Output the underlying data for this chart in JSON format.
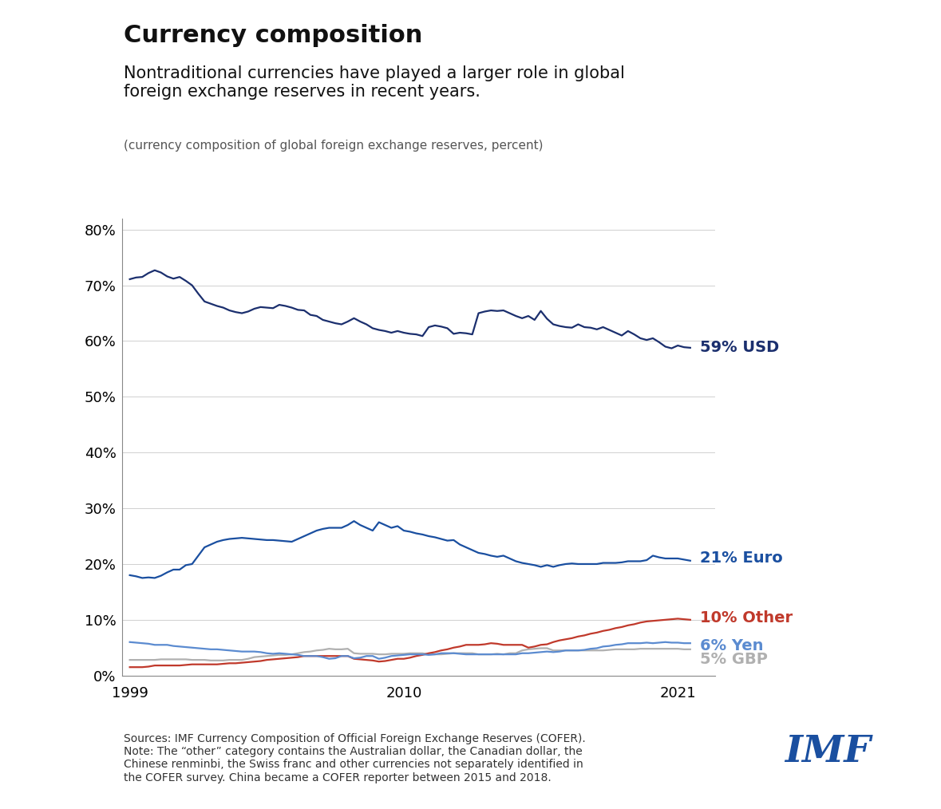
{
  "title": "Currency composition",
  "subtitle": "Nontraditional currencies have played a larger role in global\nforeign exchange reserves in recent years.",
  "caption": "(currency composition of global foreign exchange reserves, percent)",
  "source_text": "Sources: IMF Currency Composition of Official Foreign Exchange Reserves (COFER).\nNote: The “other” category contains the Australian dollar, the Canadian dollar, the\nChinese renminbi, the Swiss franc and other currencies not separately identified in\nthe COFER survey. China became a COFER reporter between 2015 and 2018.",
  "years": [
    1999,
    1999.25,
    1999.5,
    1999.75,
    2000,
    2000.25,
    2000.5,
    2000.75,
    2001,
    2001.25,
    2001.5,
    2001.75,
    2002,
    2002.25,
    2002.5,
    2002.75,
    2003,
    2003.25,
    2003.5,
    2003.75,
    2004,
    2004.25,
    2004.5,
    2004.75,
    2005,
    2005.25,
    2005.5,
    2005.75,
    2006,
    2006.25,
    2006.5,
    2006.75,
    2007,
    2007.25,
    2007.5,
    2007.75,
    2008,
    2008.25,
    2008.5,
    2008.75,
    2009,
    2009.25,
    2009.5,
    2009.75,
    2010,
    2010.25,
    2010.5,
    2010.75,
    2011,
    2011.25,
    2011.5,
    2011.75,
    2012,
    2012.25,
    2012.5,
    2012.75,
    2013,
    2013.25,
    2013.5,
    2013.75,
    2014,
    2014.25,
    2014.5,
    2014.75,
    2015,
    2015.25,
    2015.5,
    2015.75,
    2016,
    2016.25,
    2016.5,
    2016.75,
    2017,
    2017.25,
    2017.5,
    2017.75,
    2018,
    2018.25,
    2018.5,
    2018.75,
    2019,
    2019.25,
    2019.5,
    2019.75,
    2020,
    2020.25,
    2020.5,
    2020.75,
    2021,
    2021.25,
    2021.5
  ],
  "usd": [
    71.1,
    71.4,
    71.5,
    72.2,
    72.7,
    72.3,
    71.6,
    71.2,
    71.5,
    70.8,
    70.0,
    68.5,
    67.1,
    66.7,
    66.3,
    66.0,
    65.5,
    65.2,
    65.0,
    65.3,
    65.8,
    66.1,
    66.0,
    65.9,
    66.5,
    66.3,
    66.0,
    65.6,
    65.5,
    64.7,
    64.5,
    63.8,
    63.5,
    63.2,
    63.0,
    63.5,
    64.1,
    63.5,
    63.0,
    62.3,
    62.0,
    61.8,
    61.5,
    61.8,
    61.5,
    61.3,
    61.2,
    60.9,
    62.5,
    62.8,
    62.6,
    62.3,
    61.3,
    61.5,
    61.4,
    61.2,
    65.0,
    65.3,
    65.5,
    65.4,
    65.5,
    65.0,
    64.5,
    64.1,
    64.5,
    63.8,
    65.4,
    64.0,
    63.0,
    62.7,
    62.5,
    62.4,
    63.0,
    62.5,
    62.4,
    62.1,
    62.5,
    62.0,
    61.5,
    61.0,
    61.8,
    61.2,
    60.5,
    60.2,
    60.5,
    59.8,
    59.0,
    58.7,
    59.2,
    58.9,
    58.8
  ],
  "euro": [
    18.0,
    17.8,
    17.5,
    17.6,
    17.5,
    17.9,
    18.5,
    19.0,
    19.0,
    19.8,
    20.0,
    21.5,
    23.0,
    23.5,
    24.0,
    24.3,
    24.5,
    24.6,
    24.7,
    24.6,
    24.5,
    24.4,
    24.3,
    24.3,
    24.2,
    24.1,
    24.0,
    24.5,
    25.0,
    25.5,
    26.0,
    26.3,
    26.5,
    26.5,
    26.5,
    27.0,
    27.7,
    27.0,
    26.5,
    26.0,
    27.5,
    27.0,
    26.5,
    26.8,
    26.0,
    25.8,
    25.5,
    25.3,
    25.0,
    24.8,
    24.5,
    24.2,
    24.3,
    23.5,
    23.0,
    22.5,
    22.0,
    21.8,
    21.5,
    21.3,
    21.5,
    21.0,
    20.5,
    20.2,
    20.0,
    19.8,
    19.5,
    19.8,
    19.5,
    19.8,
    20.0,
    20.1,
    20.0,
    20.0,
    20.0,
    20.0,
    20.2,
    20.2,
    20.2,
    20.3,
    20.5,
    20.5,
    20.5,
    20.7,
    21.5,
    21.2,
    21.0,
    21.0,
    21.0,
    20.8,
    20.6
  ],
  "other": [
    1.5,
    1.5,
    1.5,
    1.6,
    1.8,
    1.8,
    1.8,
    1.8,
    1.8,
    1.9,
    2.0,
    2.0,
    2.0,
    2.0,
    2.0,
    2.1,
    2.2,
    2.2,
    2.3,
    2.4,
    2.5,
    2.6,
    2.8,
    2.9,
    3.0,
    3.1,
    3.2,
    3.3,
    3.5,
    3.5,
    3.5,
    3.5,
    3.5,
    3.5,
    3.5,
    3.5,
    3.0,
    2.9,
    2.8,
    2.7,
    2.5,
    2.6,
    2.8,
    3.0,
    3.0,
    3.2,
    3.5,
    3.7,
    4.0,
    4.2,
    4.5,
    4.7,
    5.0,
    5.2,
    5.5,
    5.5,
    5.5,
    5.6,
    5.8,
    5.7,
    5.5,
    5.5,
    5.5,
    5.5,
    5.0,
    5.2,
    5.5,
    5.6,
    6.0,
    6.3,
    6.5,
    6.7,
    7.0,
    7.2,
    7.5,
    7.7,
    8.0,
    8.2,
    8.5,
    8.7,
    9.0,
    9.2,
    9.5,
    9.7,
    9.8,
    9.9,
    10.0,
    10.1,
    10.2,
    10.1,
    10.0
  ],
  "yen": [
    6.0,
    5.9,
    5.8,
    5.7,
    5.5,
    5.5,
    5.5,
    5.3,
    5.2,
    5.1,
    5.0,
    4.9,
    4.8,
    4.7,
    4.7,
    4.6,
    4.5,
    4.4,
    4.3,
    4.3,
    4.3,
    4.2,
    4.0,
    3.9,
    4.0,
    3.9,
    3.8,
    3.7,
    3.5,
    3.5,
    3.5,
    3.3,
    3.0,
    3.1,
    3.5,
    3.5,
    3.1,
    3.2,
    3.5,
    3.5,
    3.0,
    3.2,
    3.5,
    3.6,
    3.7,
    3.8,
    3.8,
    3.8,
    3.7,
    3.8,
    4.0,
    4.0,
    4.0,
    3.9,
    3.8,
    3.8,
    3.8,
    3.8,
    3.8,
    3.8,
    3.8,
    3.8,
    3.8,
    4.0,
    4.0,
    4.1,
    4.2,
    4.3,
    4.2,
    4.3,
    4.5,
    4.5,
    4.5,
    4.6,
    4.8,
    4.9,
    5.2,
    5.3,
    5.5,
    5.6,
    5.8,
    5.8,
    5.8,
    5.9,
    5.8,
    5.9,
    6.0,
    5.9,
    5.9,
    5.8,
    5.8
  ],
  "gbp": [
    2.8,
    2.8,
    2.8,
    2.8,
    2.8,
    2.9,
    2.9,
    2.9,
    2.9,
    2.9,
    2.8,
    2.8,
    2.8,
    2.7,
    2.7,
    2.7,
    2.8,
    2.8,
    2.8,
    3.0,
    3.3,
    3.4,
    3.5,
    3.6,
    3.7,
    3.7,
    3.8,
    4.0,
    4.2,
    4.3,
    4.5,
    4.6,
    4.8,
    4.7,
    4.7,
    4.8,
    4.0,
    3.9,
    3.9,
    3.9,
    3.8,
    3.8,
    3.9,
    3.9,
    3.9,
    4.0,
    4.0,
    4.0,
    3.8,
    3.8,
    3.8,
    3.9,
    4.0,
    4.0,
    4.0,
    4.0,
    3.8,
    3.8,
    3.8,
    3.9,
    3.8,
    4.0,
    4.0,
    4.5,
    4.7,
    4.8,
    4.9,
    4.9,
    4.5,
    4.5,
    4.5,
    4.5,
    4.5,
    4.5,
    4.5,
    4.5,
    4.5,
    4.6,
    4.7,
    4.7,
    4.7,
    4.7,
    4.8,
    4.8,
    4.8,
    4.8,
    4.8,
    4.8,
    4.8,
    4.7,
    4.7
  ],
  "usd_color": "#1b2f6e",
  "euro_color": "#1a4fa0",
  "other_color": "#c0392b",
  "yen_color": "#5b8bd0",
  "gbp_color": "#b0b0b0",
  "label_usd": "59% USD",
  "label_euro": "21% Euro",
  "label_other": "10% Other",
  "label_yen": "6% Yen",
  "label_gbp": "5% GBP",
  "ylim": [
    0,
    82
  ],
  "yticks": [
    0,
    10,
    20,
    30,
    40,
    50,
    60,
    70,
    80
  ],
  "xticks": [
    1999,
    2010,
    2021
  ],
  "xlim_left": 1998.7,
  "xlim_right": 2022.5,
  "background_color": "#ffffff",
  "imf_color": "#1a4fa0",
  "grid_color": "#d0d0d0",
  "spine_color": "#888888",
  "title_fontsize": 22,
  "subtitle_fontsize": 15,
  "caption_fontsize": 11,
  "label_fontsize": 14,
  "tick_fontsize": 13,
  "source_fontsize": 10
}
